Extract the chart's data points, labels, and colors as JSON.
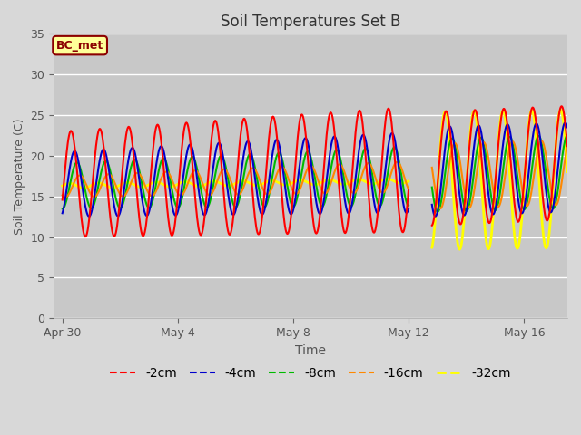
{
  "title": "Soil Temperatures Set B",
  "xlabel": "Time",
  "ylabel": "Soil Temperature (C)",
  "ylim": [
    0,
    35
  ],
  "yticks": [
    0,
    5,
    10,
    15,
    20,
    25,
    30,
    35
  ],
  "bg_color": "#d8d8d8",
  "plot_bg_color_upper": "#e8e8e8",
  "plot_bg_color_lower": "#d0d0d0",
  "annotation_text": "BC_met",
  "annotation_bg": "#ffff99",
  "annotation_border": "#8b0000",
  "series": [
    {
      "label": "-2cm",
      "color": "#ff0000",
      "linewidth": 1.5
    },
    {
      "label": "-4cm",
      "color": "#0000cc",
      "linewidth": 1.5
    },
    {
      "label": "-8cm",
      "color": "#00bb00",
      "linewidth": 1.5
    },
    {
      "label": "-16cm",
      "color": "#ff8800",
      "linewidth": 1.5
    },
    {
      "label": "-32cm",
      "color": "#ffff00",
      "linewidth": 2.0
    }
  ],
  "xtick_labels": [
    "Apr 30",
    "May 4",
    "May 8",
    "May 12",
    "May 16"
  ],
  "xtick_positions": [
    0,
    4,
    8,
    12,
    16
  ],
  "legend_fontsize": 10,
  "title_fontsize": 12
}
